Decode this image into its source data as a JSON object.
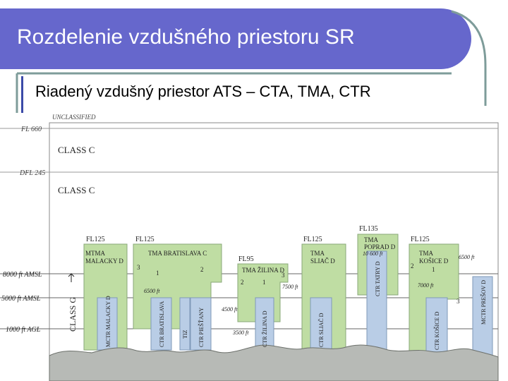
{
  "header": {
    "title": "Rozdelenie vzdušného priestoru SR",
    "subtitle": "Riadený vzdušný priestor ATS – CTA, TMA, CTR"
  },
  "colors": {
    "title_bg": "#6667cc",
    "accent_line": "#7e9c9a",
    "zone_green": "#bfdda3",
    "zone_blue": "#b9cde6",
    "terrain": "#b7bab6"
  },
  "diagram": {
    "top_label": "UNCLASSIFIED",
    "levels": {
      "fl660": "FL 660",
      "dfl": "DFL 245",
      "amsl8000": "8000 ft AMSL",
      "amsl5000": "5000 ft AMSL",
      "agl1000": "1000 ft AGL"
    },
    "classes": {
      "upper": "CLASS C",
      "lower": "CLASS C",
      "g": "CLASS G"
    },
    "blocks": {
      "mtma": {
        "fl": "FL125",
        "name1": "MTMA",
        "name2": "MALACKY D"
      },
      "tma_ba": {
        "fl": "FL125",
        "name": "TMA BRATISLAVA C",
        "alt": "6500 ft"
      },
      "tma_za": {
        "fl": "FL95",
        "name": "TMA ŽILINA D",
        "alt1": "7500 ft",
        "alt2": "4500 ft",
        "alt3": "3500 ft"
      },
      "tma_sl": {
        "fl": "FL125",
        "name1": "TMA",
        "name2": "SLIAČ D"
      },
      "tma_pp": {
        "fl": "FL135",
        "name1": "TMA",
        "name2": "POPRAD D",
        "alt": "10 600 ft"
      },
      "tma_ke": {
        "fl": "FL125",
        "name1": "TMA",
        "name2": "KOŠICE D",
        "alt1": "6500 ft",
        "alt2": "7000 ft"
      }
    },
    "ctrs": {
      "mctr_malacky": "MCTR MALACKY D",
      "ctr_bratislava": "CTR BRATISLAVA",
      "tiz": "TIZ",
      "ctr_piestany": "CTR PIEŠŤANY",
      "ctr_zilina": "CTR ŽILINA D",
      "ctr_sliac": "CTR SLIAČ D",
      "ctr_tatry": "CTR TATRY D",
      "ctr_kosice": "CTR KOŠICE D",
      "mctr_presov": "MCTR PREŠOV D"
    },
    "sector_numbers": [
      "1",
      "2",
      "3"
    ]
  }
}
